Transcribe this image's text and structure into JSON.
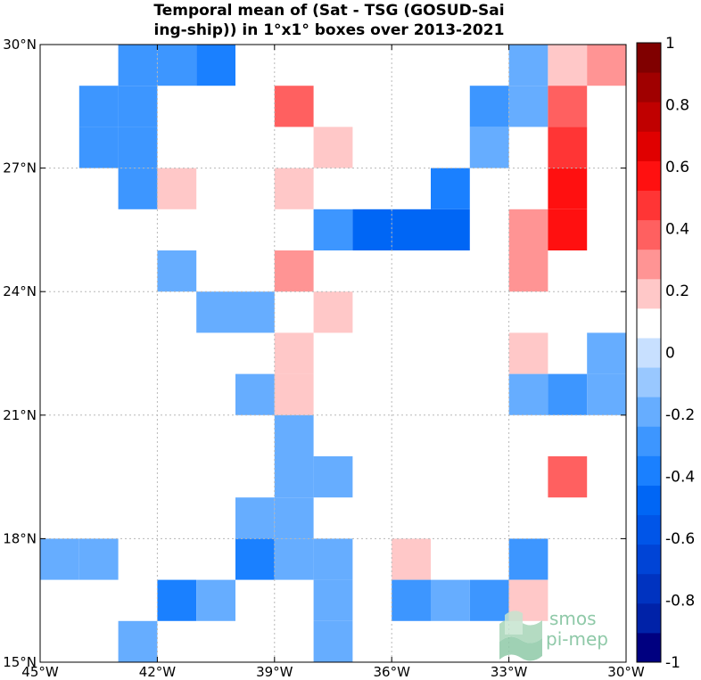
{
  "chart_data": {
    "type": "heatmap",
    "title_line1": "Temporal mean of (Sat - TSG (GOSUD-Sai",
    "title_line2": "ing-ship)) in 1°x1° boxes over 2013-2021",
    "x_range": [
      -45,
      -30
    ],
    "y_range": [
      15,
      30
    ],
    "x_ticks": [
      {
        "value": -45,
        "label": "45°W"
      },
      {
        "value": -42,
        "label": "42°W"
      },
      {
        "value": -39,
        "label": "39°W"
      },
      {
        "value": -36,
        "label": "36°W"
      },
      {
        "value": -33,
        "label": "33°W"
      },
      {
        "value": -30,
        "label": "30°W"
      }
    ],
    "y_ticks": [
      {
        "value": 30,
        "label": "30°N"
      },
      {
        "value": 27,
        "label": "27°N"
      },
      {
        "value": 24,
        "label": "24°N"
      },
      {
        "value": 21,
        "label": "21°N"
      },
      {
        "value": 18,
        "label": "18°N"
      },
      {
        "value": 15,
        "label": "15°N"
      }
    ],
    "grid": true,
    "colorbar": {
      "range": [
        -1,
        1
      ],
      "levels": 20,
      "colors_low_to_high": [
        "#000080",
        "#0022a8",
        "#0033c0",
        "#0044d6",
        "#0055e8",
        "#0066f5",
        "#1a80ff",
        "#3d96ff",
        "#66adff",
        "#99c8ff",
        "#c8e0ff",
        "#ffffff",
        "#ffc8c8",
        "#ff9494",
        "#ff6060",
        "#ff3535",
        "#ff1010",
        "#e00000",
        "#c00000",
        "#a00000",
        "#800000"
      ],
      "tick_labels": [
        {
          "value": 1,
          "label": "1"
        },
        {
          "value": 0.8,
          "label": "0.8"
        },
        {
          "value": 0.6,
          "label": "0.6"
        },
        {
          "value": 0.4,
          "label": "0.4"
        },
        {
          "value": 0.2,
          "label": "0.2"
        },
        {
          "value": 0,
          "label": "0"
        },
        {
          "value": -0.2,
          "label": "-0.2"
        },
        {
          "value": -0.4,
          "label": "-0.4"
        },
        {
          "value": -0.6,
          "label": "-0.6"
        },
        {
          "value": -0.8,
          "label": "-0.8"
        },
        {
          "value": -1,
          "label": "-1"
        }
      ]
    },
    "cells": [
      {
        "lon": -43,
        "lat": 29,
        "value": -0.25
      },
      {
        "lon": -42,
        "lat": 29,
        "value": -0.25
      },
      {
        "lon": -41,
        "lat": 29,
        "value": -0.35
      },
      {
        "lon": -33,
        "lat": 29,
        "value": -0.15
      },
      {
        "lon": -32,
        "lat": 29,
        "value": 0.15
      },
      {
        "lon": -31,
        "lat": 29,
        "value": 0.25
      },
      {
        "lon": -44,
        "lat": 28,
        "value": -0.25
      },
      {
        "lon": -43,
        "lat": 28,
        "value": -0.25
      },
      {
        "lon": -39,
        "lat": 28,
        "value": 0.35
      },
      {
        "lon": -34,
        "lat": 28,
        "value": -0.25
      },
      {
        "lon": -33,
        "lat": 28,
        "value": -0.15
      },
      {
        "lon": -32,
        "lat": 28,
        "value": 0.35
      },
      {
        "lon": -44,
        "lat": 27,
        "value": -0.25
      },
      {
        "lon": -43,
        "lat": 27,
        "value": -0.25
      },
      {
        "lon": -38,
        "lat": 27,
        "value": 0.15
      },
      {
        "lon": -34,
        "lat": 27,
        "value": -0.15
      },
      {
        "lon": -32,
        "lat": 27,
        "value": 0.45
      },
      {
        "lon": -43,
        "lat": 26,
        "value": -0.25
      },
      {
        "lon": -42,
        "lat": 26,
        "value": 0.15
      },
      {
        "lon": -39,
        "lat": 26,
        "value": 0.15
      },
      {
        "lon": -35,
        "lat": 26,
        "value": -0.35
      },
      {
        "lon": -32,
        "lat": 26,
        "value": 0.55
      },
      {
        "lon": -38,
        "lat": 25,
        "value": -0.25
      },
      {
        "lon": -37,
        "lat": 25,
        "value": -0.45
      },
      {
        "lon": -36,
        "lat": 25,
        "value": -0.45
      },
      {
        "lon": -35,
        "lat": 25,
        "value": -0.45
      },
      {
        "lon": -33,
        "lat": 25,
        "value": 0.25
      },
      {
        "lon": -32,
        "lat": 25,
        "value": 0.55
      },
      {
        "lon": -42,
        "lat": 24,
        "value": -0.15
      },
      {
        "lon": -39,
        "lat": 24,
        "value": 0.25
      },
      {
        "lon": -33,
        "lat": 24,
        "value": 0.25
      },
      {
        "lon": -41,
        "lat": 23,
        "value": -0.15
      },
      {
        "lon": -40,
        "lat": 23,
        "value": -0.15
      },
      {
        "lon": -38,
        "lat": 23,
        "value": 0.15
      },
      {
        "lon": -39,
        "lat": 22,
        "value": 0.15
      },
      {
        "lon": -33,
        "lat": 22,
        "value": 0.15
      },
      {
        "lon": -31,
        "lat": 22,
        "value": -0.15
      },
      {
        "lon": -40,
        "lat": 21,
        "value": -0.15
      },
      {
        "lon": -39,
        "lat": 21,
        "value": 0.15
      },
      {
        "lon": -33,
        "lat": 21,
        "value": -0.15
      },
      {
        "lon": -32,
        "lat": 21,
        "value": -0.25
      },
      {
        "lon": -31,
        "lat": 21,
        "value": -0.15
      },
      {
        "lon": -39,
        "lat": 20,
        "value": -0.15
      },
      {
        "lon": -39,
        "lat": 19,
        "value": -0.15
      },
      {
        "lon": -38,
        "lat": 19,
        "value": -0.15
      },
      {
        "lon": -32,
        "lat": 19,
        "value": 0.35
      },
      {
        "lon": -40,
        "lat": 18,
        "value": -0.15
      },
      {
        "lon": -39,
        "lat": 18,
        "value": -0.15
      },
      {
        "lon": -45,
        "lat": 17,
        "value": -0.15
      },
      {
        "lon": -44,
        "lat": 17,
        "value": -0.15
      },
      {
        "lon": -40,
        "lat": 17,
        "value": -0.35
      },
      {
        "lon": -39,
        "lat": 17,
        "value": -0.15
      },
      {
        "lon": -38,
        "lat": 17,
        "value": -0.15
      },
      {
        "lon": -36,
        "lat": 17,
        "value": 0.15
      },
      {
        "lon": -33,
        "lat": 17,
        "value": -0.25
      },
      {
        "lon": -42,
        "lat": 16,
        "value": -0.35
      },
      {
        "lon": -41,
        "lat": 16,
        "value": -0.15
      },
      {
        "lon": -38,
        "lat": 16,
        "value": -0.15
      },
      {
        "lon": -36,
        "lat": 16,
        "value": -0.25
      },
      {
        "lon": -35,
        "lat": 16,
        "value": -0.15
      },
      {
        "lon": -34,
        "lat": 16,
        "value": -0.25
      },
      {
        "lon": -33,
        "lat": 16,
        "value": 0.15
      },
      {
        "lon": -43,
        "lat": 15,
        "value": -0.15
      },
      {
        "lon": -38,
        "lat": 15,
        "value": -0.15
      }
    ]
  },
  "logo": {
    "line1": "smos",
    "line2": "pi-mep"
  }
}
